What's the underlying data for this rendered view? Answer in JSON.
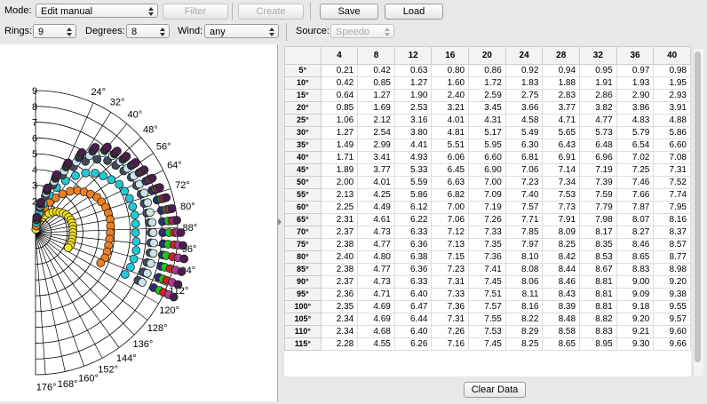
{
  "toolbar": {
    "mode_label": "Mode:",
    "mode": "Edit manual",
    "filter": "Filter",
    "create": "Create",
    "save": "Save",
    "load": "Load",
    "rings_label": "Rings:",
    "rings": "9",
    "degrees_label": "Degrees:",
    "degrees": "8",
    "wind_label": "Wind:",
    "wind": "any",
    "source_label": "Source:",
    "source": "Speedo"
  },
  "polar": {
    "rlim": [
      0,
      9
    ],
    "rticks": [
      1,
      2,
      3,
      4,
      5,
      6,
      7,
      8,
      9
    ],
    "angle_ticks": [
      {
        "value": 24,
        "label": "24°"
      },
      {
        "value": 32,
        "label": "32°"
      },
      {
        "value": 40,
        "label": "40°"
      },
      {
        "value": 48,
        "label": "48°"
      },
      {
        "value": 56,
        "label": "56°"
      },
      {
        "value": 64,
        "label": "64°"
      },
      {
        "value": 72,
        "label": "72°"
      },
      {
        "value": 80,
        "label": "80°"
      },
      {
        "value": 88,
        "label": "88°"
      },
      {
        "value": 96,
        "label": "96°"
      },
      {
        "value": 104,
        "label": "104°"
      },
      {
        "value": 112,
        "label": "112°"
      },
      {
        "value": 120,
        "label": "120°"
      },
      {
        "value": 128,
        "label": "128°"
      },
      {
        "value": 136,
        "label": "136°"
      },
      {
        "value": 144,
        "label": "144°"
      },
      {
        "value": 152,
        "label": "152°"
      },
      {
        "value": 160,
        "label": "160°"
      },
      {
        "value": 168,
        "label": "168°"
      },
      {
        "value": 176,
        "label": "176°"
      }
    ],
    "colors": [
      "#f5e31c",
      "#f07f1e",
      "#22c9d6",
      "#3e4a5e",
      "#c9e3e6",
      "#2b2d6e",
      "#22c31c",
      "#d42020",
      "#b03aa0",
      "#4a1f4a"
    ]
  },
  "table": {
    "columns": [
      "4",
      "8",
      "12",
      "16",
      "20",
      "24",
      "28",
      "32",
      "36",
      "40"
    ],
    "rows": [
      [
        "5°",
        "0.21",
        "0.42",
        "0.63",
        "0.80",
        "0.86",
        "0.92",
        "0.94",
        "0.95",
        "0.97",
        "0.98"
      ],
      [
        "10°",
        "0.42",
        "0.85",
        "1.27",
        "1.60",
        "1.72",
        "1.83",
        "1.88",
        "1.91",
        "1.93",
        "1.95"
      ],
      [
        "15°",
        "0.64",
        "1.27",
        "1.90",
        "2.40",
        "2.59",
        "2.75",
        "2.83",
        "2.86",
        "2.90",
        "2.93"
      ],
      [
        "20°",
        "0.85",
        "1.69",
        "2.53",
        "3.21",
        "3.45",
        "3.66",
        "3.77",
        "3.82",
        "3.86",
        "3.91"
      ],
      [
        "25°",
        "1.06",
        "2.12",
        "3.16",
        "4.01",
        "4.31",
        "4.58",
        "4.71",
        "4.77",
        "4.83",
        "4.88"
      ],
      [
        "30°",
        "1.27",
        "2.54",
        "3.80",
        "4.81",
        "5.17",
        "5.49",
        "5.65",
        "5.73",
        "5.79",
        "5.86"
      ],
      [
        "35°",
        "1.49",
        "2.99",
        "4.41",
        "5.51",
        "5.95",
        "6.30",
        "6.43",
        "6.48",
        "6.54",
        "6.60"
      ],
      [
        "40°",
        "1.71",
        "3.41",
        "4.93",
        "6.06",
        "6.60",
        "6.81",
        "6.91",
        "6.96",
        "7.02",
        "7.08"
      ],
      [
        "45°",
        "1.89",
        "3.77",
        "5.33",
        "6.45",
        "6.90",
        "7.06",
        "7.14",
        "7.19",
        "7.25",
        "7.31"
      ],
      [
        "50°",
        "2.00",
        "4.01",
        "5.59",
        "6.63",
        "7.00",
        "7.23",
        "7.34",
        "7.39",
        "7.46",
        "7.52"
      ],
      [
        "55°",
        "2.13",
        "4.25",
        "5.86",
        "6.82",
        "7.09",
        "7.40",
        "7.53",
        "7.59",
        "7.66",
        "7.74"
      ],
      [
        "60°",
        "2.25",
        "4.49",
        "6.12",
        "7.00",
        "7.19",
        "7.57",
        "7.73",
        "7.79",
        "7.87",
        "7.95"
      ],
      [
        "65°",
        "2.31",
        "4.61",
        "6.22",
        "7.06",
        "7.26",
        "7.71",
        "7.91",
        "7.98",
        "8.07",
        "8.16"
      ],
      [
        "70°",
        "2.37",
        "4.73",
        "6.33",
        "7.12",
        "7.33",
        "7.85",
        "8.09",
        "8.17",
        "8.27",
        "8.37"
      ],
      [
        "75°",
        "2.38",
        "4.77",
        "6.36",
        "7.13",
        "7.35",
        "7.97",
        "8.25",
        "8.35",
        "8.46",
        "8.57"
      ],
      [
        "80°",
        "2.40",
        "4.80",
        "6.38",
        "7.15",
        "7.36",
        "8.10",
        "8.42",
        "8.53",
        "8.65",
        "8.77"
      ],
      [
        "85°",
        "2.38",
        "4.77",
        "6.36",
        "7.23",
        "7.41",
        "8.08",
        "8.44",
        "8.67",
        "8.83",
        "8.98"
      ],
      [
        "90°",
        "2.37",
        "4.73",
        "6.33",
        "7.31",
        "7.45",
        "8.06",
        "8.46",
        "8.81",
        "9.00",
        "9.20"
      ],
      [
        "95°",
        "2.36",
        "4.71",
        "6.40",
        "7.33",
        "7.51",
        "8.11",
        "8.43",
        "8.81",
        "9.09",
        "9.38"
      ],
      [
        "100°",
        "2.35",
        "4.69",
        "6.47",
        "7.36",
        "7.57",
        "8.16",
        "8.39",
        "8.81",
        "9.18",
        "9.55"
      ],
      [
        "105°",
        "2.34",
        "4.69",
        "6.44",
        "7.31",
        "7.55",
        "8.22",
        "8.48",
        "8.82",
        "9.20",
        "9.57"
      ],
      [
        "110°",
        "2.34",
        "4.68",
        "6.40",
        "7.26",
        "7.53",
        "8.29",
        "8.58",
        "8.83",
        "9.21",
        "9.60"
      ],
      [
        "115°",
        "2.28",
        "4.55",
        "6.26",
        "7.16",
        "7.45",
        "8.25",
        "8.65",
        "8.95",
        "9.30",
        "9.66"
      ]
    ]
  },
  "clear": "Clear Data"
}
